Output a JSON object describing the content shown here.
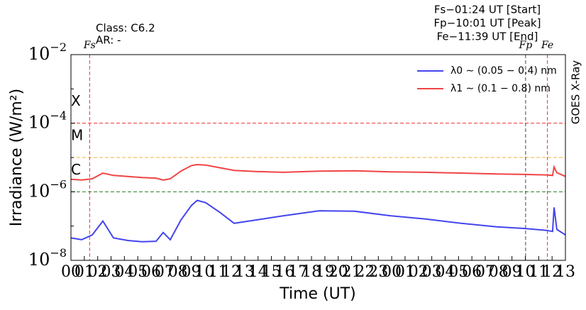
{
  "chart_data": {
    "type": "line",
    "xlabel": "Time (UT)",
    "ylabel": "Irradiance (W/m²)",
    "right_label": "GOES X-Ray",
    "annotations": [
      "Class:  C6.2",
      "AR: -"
    ],
    "event_lines": [
      "Fs−01:24 UT [Start]",
      "Fp−10:01 UT [Peak]",
      "Fe−11:39 UT [End]"
    ],
    "log_scale": true,
    "x": [
      0,
      0.8,
      1.59,
      2.39,
      3.18,
      4.25,
      5.31,
      6.37,
      6.9,
      7.43,
      8.23,
      9.02,
      9.45,
      10.08,
      11.15,
      12.21,
      13.8,
      15.92,
      18.58,
      21.23,
      23.89,
      26.54,
      29.19,
      31.85,
      33.97,
      35.56,
      36.04,
      36.15,
      36.36,
      37
    ],
    "series": [
      {
        "name": "λ0 ∼ (0.05 − 0.4) nm",
        "color": "#4444ee",
        "values": [
          4.5e-08,
          4e-08,
          5.5e-08,
          1.4e-07,
          4.5e-08,
          3.8e-08,
          3.5e-08,
          3.6e-08,
          6.5e-08,
          4e-08,
          1.5e-07,
          4e-07,
          5.6e-07,
          4.8e-07,
          2.5e-07,
          1.2e-07,
          1.5e-07,
          2e-07,
          2.8e-07,
          2.7e-07,
          2e-07,
          1.6e-07,
          1.2e-07,
          9.5e-08,
          8.5e-08,
          7.5e-08,
          7e-08,
          3.5e-07,
          8e-08,
          5.5e-08
        ]
      },
      {
        "name": "λ1 ∼ (0.1 − 0.8) nm",
        "color": "#f04444",
        "values": [
          2.3e-06,
          2.2e-06,
          2.4e-06,
          3.5e-06,
          3e-06,
          2.8e-06,
          2.6e-06,
          2.5e-06,
          2.2e-06,
          2.4e-06,
          4e-06,
          5.8e-06,
          6.2e-06,
          6e-06,
          5e-06,
          4.2e-06,
          3.9e-06,
          3.7e-06,
          4e-06,
          4.1e-06,
          3.8e-06,
          3.7e-06,
          3.5e-06,
          3.3e-06,
          3.2e-06,
          3.1e-06,
          3e-06,
          5.3e-06,
          3.6e-06,
          2.8e-06
        ]
      }
    ],
    "levels": [
      {
        "label": "X",
        "value": 0.0001,
        "color": "#ee3333"
      },
      {
        "label": "M",
        "value": 1e-05,
        "color": "#f0b040"
      },
      {
        "label": "C",
        "value": 1e-06,
        "color": "#2a7a2a"
      }
    ],
    "markers": [
      {
        "label": "Fs",
        "x": 1.4,
        "color": "#ee3333"
      },
      {
        "label": "Fp",
        "x": 34.02,
        "color": "#444444"
      },
      {
        "label": "Fe",
        "x": 35.65,
        "color": "#ee3333"
      }
    ],
    "xlim": [
      0,
      37
    ],
    "xticks": [
      {
        "value": 0,
        "label": "00"
      },
      {
        "value": 1,
        "label": "01"
      },
      {
        "value": 2,
        "label": "02"
      },
      {
        "value": 3,
        "label": "03"
      },
      {
        "value": 4,
        "label": "04"
      },
      {
        "value": 5,
        "label": "05"
      },
      {
        "value": 6,
        "label": "06"
      },
      {
        "value": 7,
        "label": "07"
      },
      {
        "value": 8,
        "label": "08"
      },
      {
        "value": 9,
        "label": "09"
      },
      10,
      11,
      12,
      13,
      14,
      15,
      16,
      17,
      18,
      19,
      20,
      21,
      22,
      23,
      {
        "value": 24,
        "label": "00"
      },
      {
        "value": 25,
        "label": "01"
      },
      {
        "value": 26,
        "label": "02"
      },
      {
        "value": 27,
        "label": "03"
      },
      {
        "value": 28,
        "label": "04"
      },
      {
        "value": 29,
        "label": "05"
      },
      {
        "value": 30,
        "label": "06"
      },
      {
        "value": 31,
        "label": "07"
      },
      {
        "value": 32,
        "label": "08"
      },
      {
        "value": 33,
        "label": "09"
      },
      {
        "value": 34,
        "label": "10"
      },
      {
        "value": 35,
        "label": "11"
      },
      {
        "value": 36,
        "label": "12"
      },
      {
        "value": 37,
        "label": "13"
      }
    ],
    "ylim": [
      1e-08,
      0.01
    ],
    "yticks": [
      {
        "value": 1e-08,
        "label": "10−8"
      },
      {
        "value": 1e-06,
        "label": "10−6"
      },
      {
        "value": 0.0001,
        "label": "10−4"
      },
      {
        "value": 0.01,
        "label": "10−2"
      }
    ],
    "yminor": [
      1e-07,
      1e-05,
      0.001
    ],
    "legend": "upper right"
  }
}
